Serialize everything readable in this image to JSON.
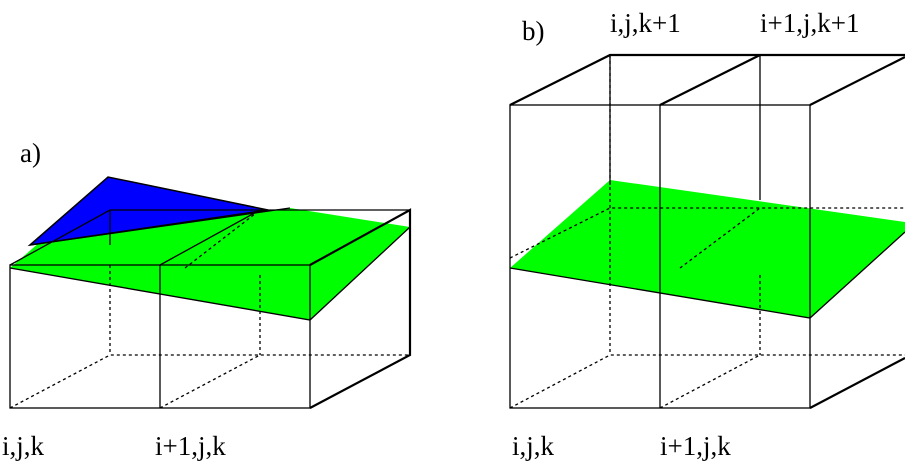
{
  "panels": [
    {
      "label": "a)",
      "bottom_labels": [
        "i,j,k",
        "i+1,j,k"
      ]
    },
    {
      "label": "b)",
      "bottom_labels": [
        "i,j,k",
        "i+1,j,k"
      ],
      "top_labels": [
        "i,j,k+1",
        "i+1,j,k+1"
      ]
    }
  ]
}
